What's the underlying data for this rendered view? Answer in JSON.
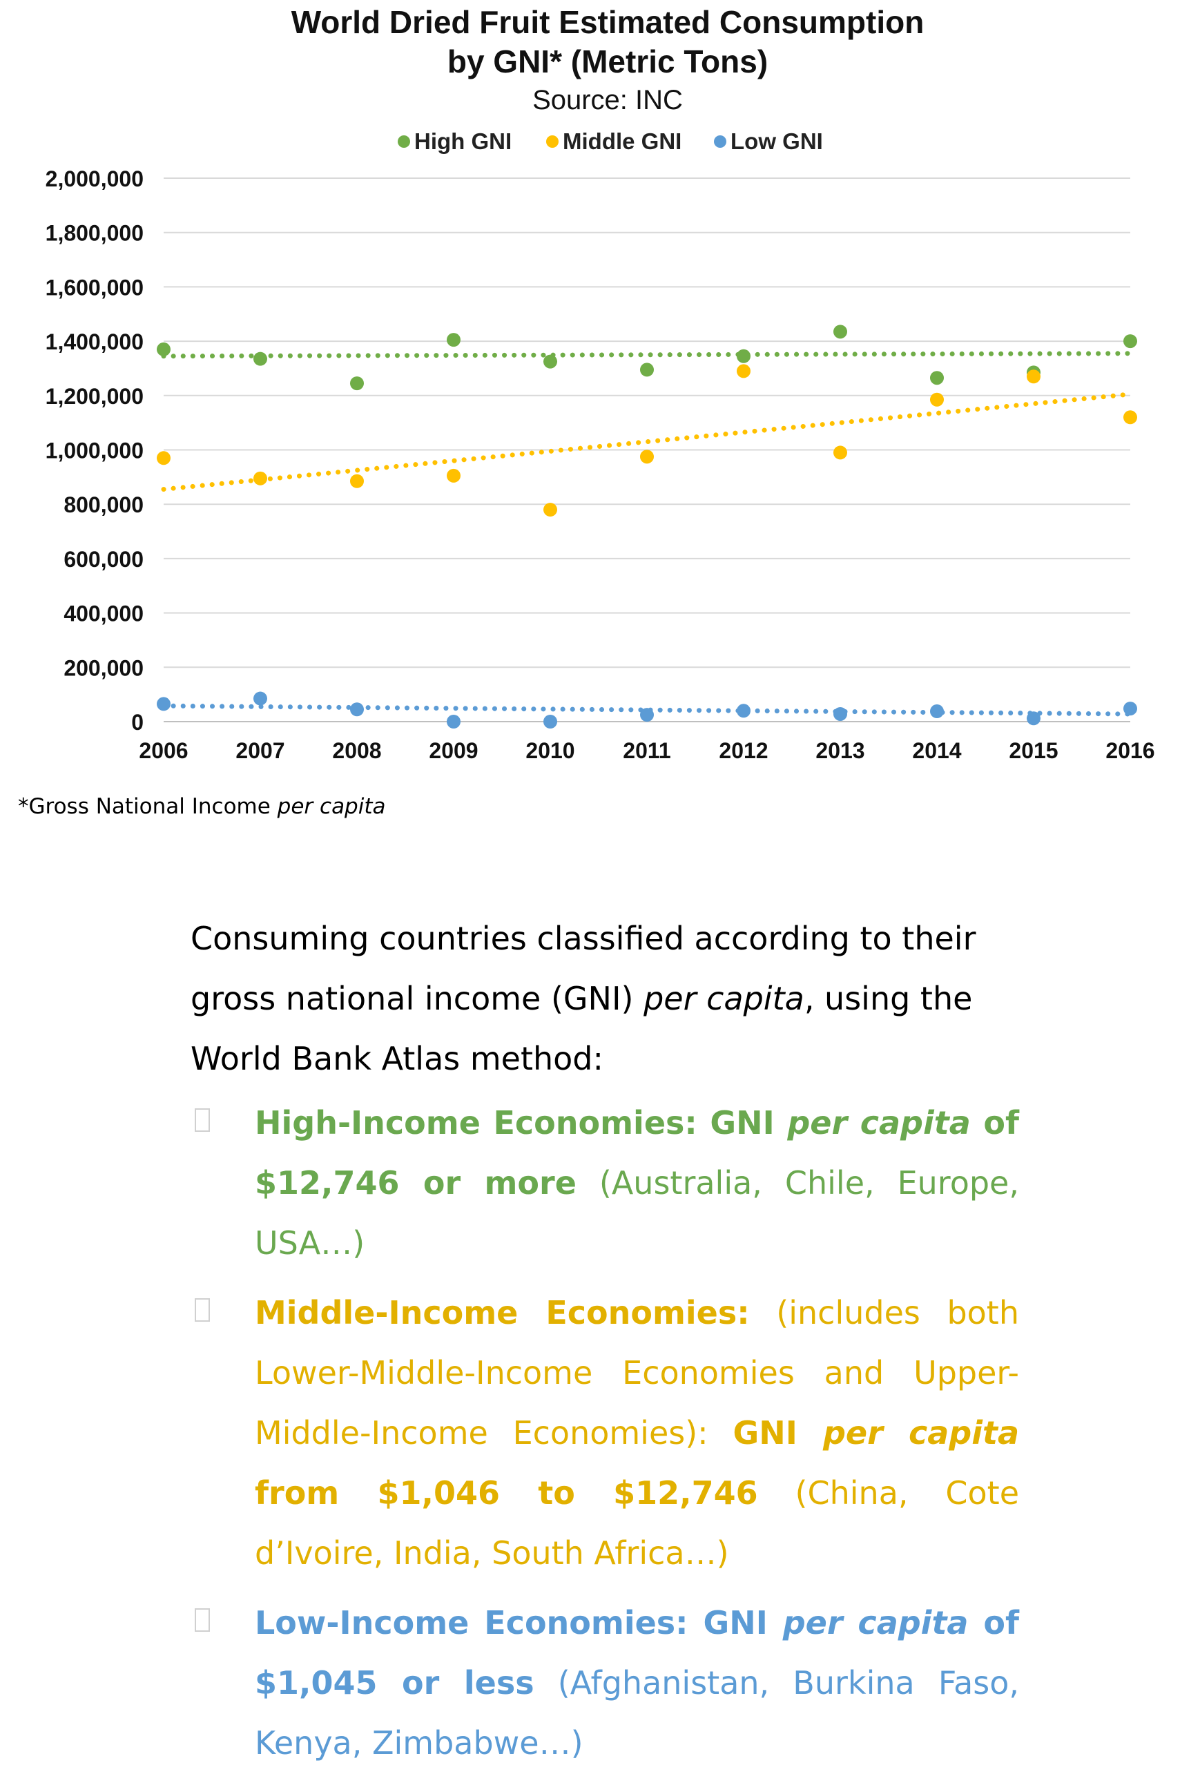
{
  "chart_data": {
    "type": "scatter",
    "title_line1": "World Dried Fruit Estimated Consumption",
    "title_line2": "by GNI* (Metric Tons)",
    "subtitle": "Source: INC",
    "x": [
      2006,
      2007,
      2008,
      2009,
      2010,
      2011,
      2012,
      2013,
      2014,
      2015,
      2016
    ],
    "xlim": [
      2006,
      2016
    ],
    "ylim": [
      0,
      2000000
    ],
    "yticks": [
      0,
      200000,
      400000,
      600000,
      800000,
      1000000,
      1200000,
      1400000,
      1600000,
      1800000,
      2000000
    ],
    "ytick_labels": [
      "0",
      "200,000",
      "400,000",
      "600,000",
      "800,000",
      "1,000,000",
      "1,200,000",
      "1,400,000",
      "1,600,000",
      "1,800,000",
      "2,000,000"
    ],
    "xtick_labels": [
      "2006",
      "2007",
      "2008",
      "2009",
      "2010",
      "2011",
      "2012",
      "2013",
      "2014",
      "2015",
      "2016"
    ],
    "grid": true,
    "legend_position": "top",
    "series": [
      {
        "name": "High GNI",
        "color": "#70ad47",
        "values": [
          1370000,
          1335000,
          1245000,
          1405000,
          1325000,
          1295000,
          1345000,
          1435000,
          1265000,
          1285000,
          1400000
        ],
        "trend": [
          1345000,
          1355000
        ]
      },
      {
        "name": "Middle GNI",
        "color": "#ffc000",
        "values": [
          970000,
          895000,
          885000,
          905000,
          780000,
          975000,
          1290000,
          990000,
          1185000,
          1270000,
          1120000
        ],
        "trend": [
          855000,
          1205000
        ]
      },
      {
        "name": "Low GNI",
        "color": "#5b9bd5",
        "values": [
          65000,
          85000,
          45000,
          0,
          0,
          25000,
          40000,
          28000,
          38000,
          12000,
          48000
        ],
        "trend": [
          58000,
          28000
        ]
      }
    ]
  },
  "footnote": {
    "prefix": "*Gross National Income ",
    "italic": "per capita"
  },
  "intro": {
    "part1": "Consuming countries classified according to their gross national income (GNI) ",
    "italic": "per capita",
    "part2": ", using the World Bank Atlas method:"
  },
  "bullets": {
    "high": {
      "bold1": "High-Income Economies: GNI ",
      "bold_italic": "per capita",
      "bold2": " of $12,746 or more",
      "rest": " (Australia, Chile, Europe, USA…)"
    },
    "middle": {
      "bold1": "Middle-Income Economies:",
      "plain1": " (includes both Lower-Middle-Income Economies and Upper-Middle-Income Economies): ",
      "bold2": "GNI ",
      "bold_italic": "per capita",
      "bold3": " from $1,046 to $12,746",
      "rest": " (China, Cote d’Ivoire, India, South Africa…)"
    },
    "low": {
      "bold1": "Low-Income Economies: GNI ",
      "bold_italic": "per capita",
      "bold2": " of $1,045 or less",
      "rest": " (Afghanistan, Burkina Faso, Kenya, Zimbabwe…)"
    }
  }
}
